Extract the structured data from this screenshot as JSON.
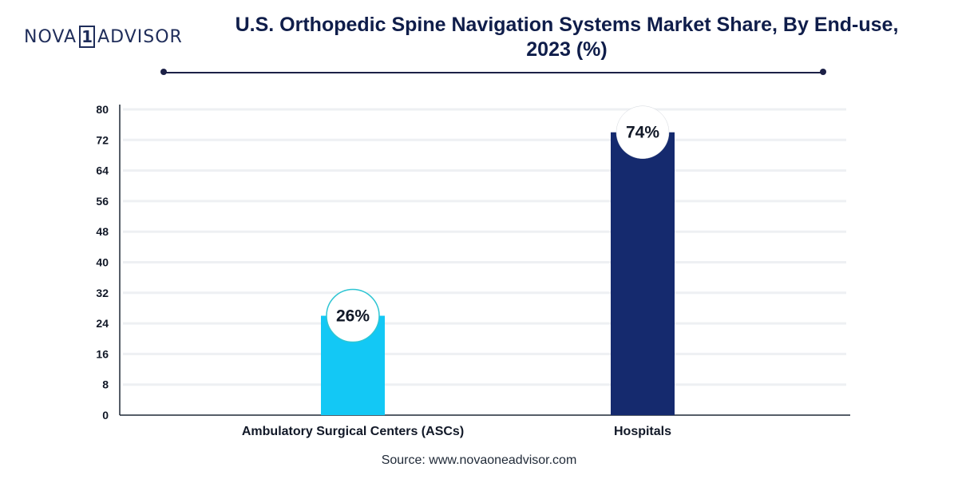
{
  "brand": {
    "name_left": "NOVA",
    "name_mark": "1",
    "name_right": "ADVISOR"
  },
  "source": "Source: www.novaoneadvisor.com",
  "chart_data": {
    "type": "bar",
    "title": "U.S. Orthopedic Spine Navigation Systems Market Share, By End-use, 2023 (%)",
    "title_lines": [
      "U.S. Orthopedic Spine Navigation Systems Market Share, By End-use,",
      "2023 (%)"
    ],
    "categories": [
      "Ambulatory Surgical Centers (ASCs)",
      "Hospitals"
    ],
    "values": [
      26,
      74
    ],
    "data_labels": [
      "26%",
      "74%"
    ],
    "colors": [
      "#13c8f5",
      "#152a6e"
    ],
    "label_circle_colors": [
      "#2ec5d3",
      "#ffffff"
    ],
    "ylim": [
      0,
      80
    ],
    "yticks": [
      0,
      8,
      16,
      24,
      32,
      40,
      48,
      56,
      64,
      72,
      80
    ],
    "xlabel": "",
    "ylabel": "",
    "grid": true
  }
}
